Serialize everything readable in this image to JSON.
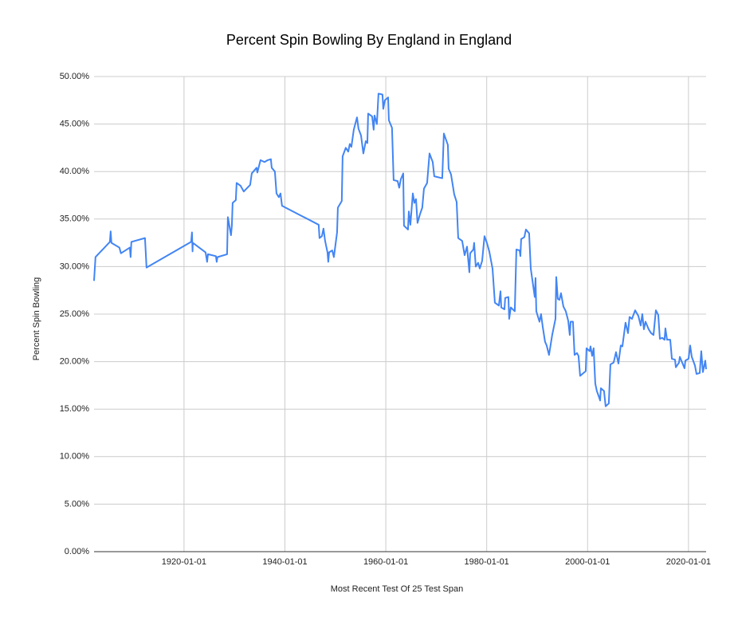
{
  "chart_data": {
    "type": "line",
    "title": "Percent Spin Bowling By England in England",
    "x_label": "Most Recent Test Of 25 Test Span",
    "y_label": "Percent Spin Bowling",
    "color": "#4285f4",
    "grid": true,
    "xlim": [
      "1902-03-01",
      "2023-07-01"
    ],
    "xticks": [
      "1920-01-01",
      "1940-01-01",
      "1960-01-01",
      "1980-01-01",
      "2000-01-01",
      "2020-01-01"
    ],
    "ylim": [
      0,
      50
    ],
    "yticks": [
      {
        "value": 0,
        "label": "0.00%"
      },
      {
        "value": 5,
        "label": "5.00%"
      },
      {
        "value": 10,
        "label": "10.00%"
      },
      {
        "value": 15,
        "label": "15.00%"
      },
      {
        "value": 20,
        "label": "20.00%"
      },
      {
        "value": 25,
        "label": "25.00%"
      },
      {
        "value": 30,
        "label": "30.00%"
      },
      {
        "value": 35,
        "label": "35.00%"
      },
      {
        "value": 40,
        "label": "40.00%"
      },
      {
        "value": 45,
        "label": "45.00%"
      },
      {
        "value": 50,
        "label": "50.00%"
      }
    ],
    "x": [
      "1902-03-01",
      "1902-06-15",
      "1905-04-20",
      "1905-06-15",
      "1905-08-10",
      "1907-03-10",
      "1907-07-01",
      "1909-04-05",
      "1909-05-30",
      "1909-07-25",
      "1912-04-05",
      "1912-05-30",
      "1912-07-25",
      "1921-06-01",
      "1921-07-30",
      "1921-09-10",
      "1921-09-28",
      "1924-04-08",
      "1924-07-30",
      "1924-09-28",
      "1926-04-25",
      "1926-06-25",
      "1926-08-20",
      "1928-07-15",
      "1928-09-10",
      "1929-04-25",
      "1929-06-25",
      "1929-08-20",
      "1930-04-08",
      "1930-06-05",
      "1931-03-20",
      "1931-11-05",
      "1933-02-10",
      "1933-06-05",
      "1934-05-20",
      "1934-07-15",
      "1935-03-01",
      "1935-12-15",
      "1936-08-01",
      "1937-03-20",
      "1937-05-20",
      "1938-01-05",
      "1938-05-01",
      "1938-10-20",
      "1939-02-15",
      "1939-06-05",
      "1946-09-10",
      "1946-11-10",
      "1947-05-01",
      "1947-08-25",
      "1947-12-20",
      "1948-06-10",
      "1948-08-05",
      "1948-10-05",
      "1949-05-20",
      "1949-09-15",
      "1950-05-05",
      "1950-06-30",
      "1951-04-10",
      "1951-06-10",
      "1952-01-25",
      "1952-07-20",
      "1952-11-10",
      "1953-03-05",
      "1953-08-25",
      "1954-04-15",
      "1954-08-05",
      "1955-02-01",
      "1955-07-20",
      "1956-01-10",
      "1956-05-05",
      "1956-07-01",
      "1957-04-15",
      "1957-08-05",
      "1957-10-05",
      "1958-03-25",
      "1958-07-20",
      "1959-05-05",
      "1959-07-01",
      "1959-10-25",
      "1960-06-15",
      "1960-08-10",
      "1961-03-25",
      "1961-07-20",
      "1962-05-05",
      "1962-08-30",
      "1962-12-25",
      "1963-06-15",
      "1963-08-10",
      "1964-05-25",
      "1964-07-25",
      "1964-11-15",
      "1965-05-10",
      "1965-08-30",
      "1965-12-25",
      "1966-04-15",
      "1966-10-10",
      "1967-03-25",
      "1967-07-25",
      "1968-03-10",
      "1968-08-30",
      "1969-04-20",
      "1969-08-10",
      "1971-03-10",
      "1971-07-05",
      "1972-04-20",
      "1972-06-15",
      "1972-12-05",
      "1973-07-25",
      "1974-01-15",
      "1974-05-10",
      "1975-02-20",
      "1975-08-15",
      "1976-02-05",
      "1976-07-25",
      "1976-09-20",
      "1977-05-10",
      "1977-07-05",
      "1977-10-30",
      "1978-04-20",
      "1978-08-15",
      "1979-02-05",
      "1979-07-25",
      "1980-01-15",
      "1980-07-05",
      "1981-02-25",
      "1981-08-15",
      "1982-05-30",
      "1982-09-25",
      "1982-11-20",
      "1983-07-10",
      "1983-09-01",
      "1984-04-20",
      "1984-06-15",
      "1984-10-10",
      "1985-07-25",
      "1985-11-20",
      "1986-07-10",
      "1986-09-05",
      "1986-11-01",
      "1987-06-20",
      "1987-10-10",
      "1988-05-30",
      "1988-09-25",
      "1989-07-10",
      "1989-09-05",
      "1989-11-01",
      "1990-06-20",
      "1990-10-10",
      "1991-02-05",
      "1991-07-25",
      "1991-11-20",
      "1992-05-10",
      "1992-12-25",
      "1993-08-20",
      "1993-10-15",
      "1994-02-05",
      "1994-06-01",
      "1994-09-25",
      "1995-03-15",
      "1995-09-05",
      "1996-03-01",
      "1996-06-20",
      "1996-08-20",
      "1997-02-05",
      "1997-06-01",
      "1997-11-20",
      "1998-03-15",
      "1998-07-10",
      "1999-08-20",
      "1999-10-15",
      "2000-06-01",
      "2000-07-30",
      "2000-11-25",
      "2001-03-15",
      "2001-07-10",
      "2001-11-01",
      "2002-04-25",
      "2002-06-25",
      "2002-08-20",
      "2003-04-05",
      "2003-07-30",
      "2004-03-15",
      "2004-07-10",
      "2005-03-01",
      "2005-08-20",
      "2006-02-10",
      "2006-07-30",
      "2006-11-25",
      "2007-07-10",
      "2008-01-05",
      "2008-04-25",
      "2008-10-20",
      "2009-06-05",
      "2010-01-25",
      "2010-07-10",
      "2010-11-05",
      "2011-03-01",
      "2011-06-25",
      "2012-02-10",
      "2012-08-01",
      "2013-01-25",
      "2013-07-15",
      "2014-01-05",
      "2014-05-01",
      "2014-10-20",
      "2015-04-05",
      "2015-06-05",
      "2015-10-01",
      "2016-05-20",
      "2016-09-15",
      "2017-05-01",
      "2017-06-30",
      "2018-02-15",
      "2018-04-15",
      "2018-10-01",
      "2019-03-20",
      "2019-05-20",
      "2020-01-05",
      "2020-05-01",
      "2020-08-25",
      "2021-04-10",
      "2021-08-05",
      "2022-03-25",
      "2022-07-15",
      "2022-11-10",
      "2023-05-01",
      "2023-07-01"
    ],
    "values": [
      28.5,
      31.0,
      32.6,
      33.7,
      32.5,
      32.0,
      31.4,
      32.0,
      31.0,
      32.6,
      33.0,
      31.5,
      29.9,
      32.6,
      33.6,
      31.6,
      32.5,
      31.5,
      30.5,
      31.3,
      31.1,
      30.5,
      31.0,
      31.3,
      35.2,
      33.3,
      34.3,
      36.7,
      37.0,
      38.8,
      38.5,
      37.9,
      38.6,
      39.8,
      40.4,
      39.9,
      41.2,
      41.0,
      41.2,
      41.3,
      40.4,
      40.0,
      37.7,
      37.3,
      37.7,
      36.4,
      34.4,
      33.0,
      33.2,
      34.0,
      32.7,
      31.5,
      30.5,
      31.5,
      31.7,
      31.0,
      33.6,
      36.2,
      36.9,
      41.6,
      42.5,
      42.1,
      42.9,
      42.6,
      44.4,
      45.7,
      44.5,
      43.8,
      41.9,
      43.2,
      43.0,
      46.1,
      45.8,
      44.4,
      45.9,
      45.0,
      48.2,
      48.1,
      46.6,
      47.5,
      47.8,
      45.4,
      44.6,
      39.1,
      39.0,
      38.3,
      39.2,
      39.8,
      34.3,
      33.9,
      35.8,
      34.4,
      37.7,
      36.7,
      37.1,
      34.6,
      35.5,
      36.2,
      38.2,
      38.8,
      41.9,
      41.0,
      39.5,
      39.3,
      44.0,
      42.8,
      40.3,
      39.7,
      37.6,
      36.8,
      33.0,
      32.7,
      31.2,
      32.1,
      29.4,
      31.4,
      31.8,
      32.5,
      30.0,
      30.4,
      29.8,
      30.6,
      33.2,
      32.5,
      31.6,
      29.8,
      26.2,
      25.9,
      27.4,
      25.7,
      25.5,
      26.7,
      26.8,
      24.5,
      25.7,
      25.3,
      31.8,
      31.7,
      31.1,
      32.9,
      33.1,
      33.9,
      33.5,
      29.8,
      26.8,
      28.8,
      25.3,
      24.2,
      25.0,
      23.7,
      22.1,
      21.7,
      20.7,
      22.8,
      24.5,
      28.9,
      26.6,
      26.5,
      27.2,
      25.8,
      25.3,
      24.3,
      22.8,
      24.2,
      24.2,
      20.7,
      20.9,
      20.6,
      18.5,
      19.0,
      21.4,
      21.1,
      21.6,
      20.6,
      21.4,
      17.7,
      16.9,
      16.2,
      15.9,
      17.2,
      16.9,
      15.3,
      15.6,
      19.7,
      19.9,
      21.0,
      19.8,
      21.7,
      21.6,
      24.1,
      23.0,
      24.7,
      24.5,
      25.4,
      24.8,
      23.8,
      25.0,
      23.4,
      24.2,
      23.4,
      23.0,
      22.8,
      25.4,
      24.9,
      22.4,
      22.5,
      22.3,
      23.5,
      22.3,
      22.3,
      20.3,
      20.2,
      19.4,
      19.9,
      20.5,
      19.9,
      19.3,
      20.1,
      20.3,
      21.7,
      20.5,
      19.6,
      18.7,
      18.8,
      21.1,
      18.9,
      20.1,
      19.2
    ]
  }
}
